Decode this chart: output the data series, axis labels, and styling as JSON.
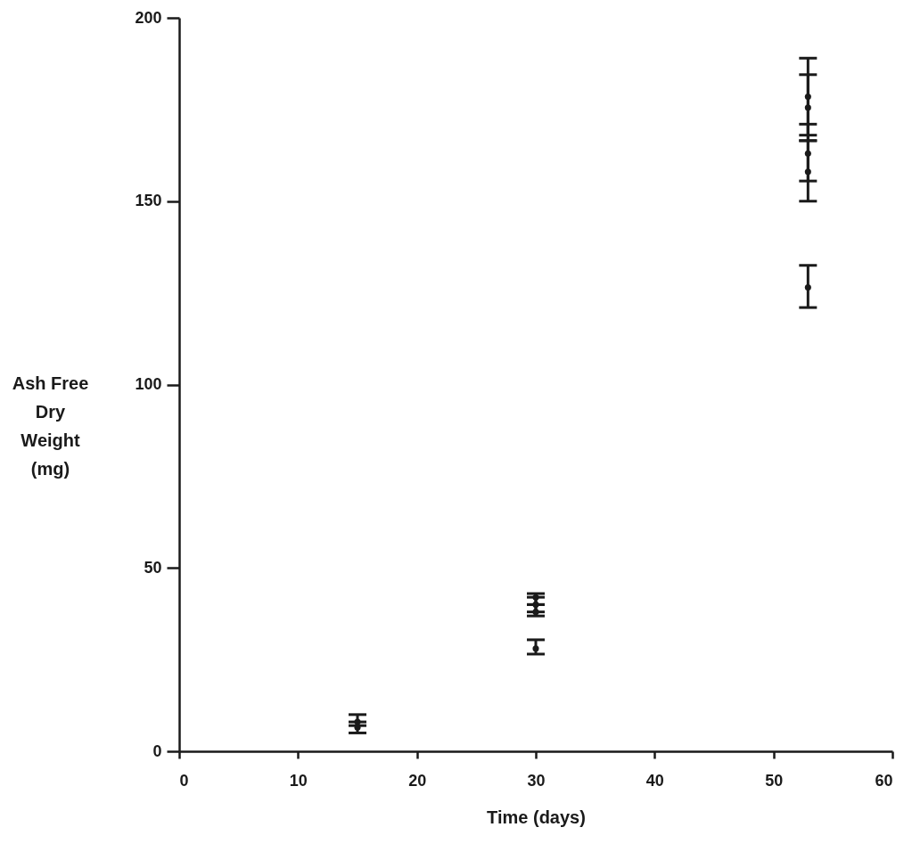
{
  "chart_data": {
    "type": "scatter",
    "xlabel": "Time (days)",
    "ylabel": "Ash Free Dry Weight (mg)",
    "x": [
      15,
      15,
      30,
      30,
      30,
      30,
      52.9,
      52.9,
      52.9,
      52.9,
      52.9
    ],
    "values": [
      8,
      6.5,
      42,
      40,
      38,
      28,
      178.5,
      175.5,
      163,
      158,
      126.5
    ],
    "errors": [
      [
        7,
        10
      ],
      [
        5,
        8
      ],
      [
        40,
        43
      ],
      [
        38,
        42
      ],
      [
        36.9,
        40
      ],
      [
        26.5,
        30.4
      ],
      [
        168,
        189
      ],
      [
        166.5,
        184.5
      ],
      [
        155.5,
        171
      ],
      [
        150,
        166.5
      ],
      [
        121,
        132.5
      ]
    ],
    "color": "#1a1a1a",
    "marker": "circle",
    "xlim": [
      0,
      60
    ],
    "xticks": [
      0,
      10,
      20,
      30,
      40,
      50,
      60
    ],
    "ylim": [
      0,
      200
    ],
    "yticks": [
      0,
      50,
      100,
      150,
      200
    ],
    "grid": false
  }
}
